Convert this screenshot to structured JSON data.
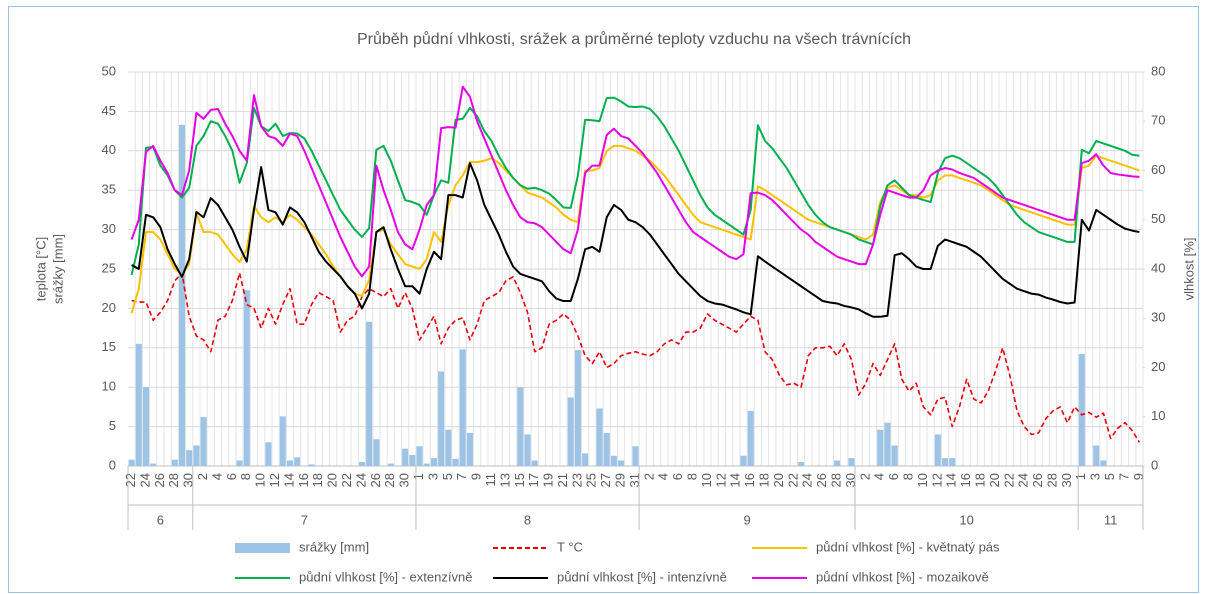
{
  "chart_data": {
    "type": "combo",
    "title": "Průběh půdní vlhkosti, srážek  a průměrné teploty vzduchu na všech trávnících",
    "ylabel": [
      "teplota [°C]",
      "srážky [mm]"
    ],
    "y2label": "vlhkost [%]",
    "ylim": [
      0,
      50
    ],
    "yticks": [
      0,
      5,
      10,
      15,
      20,
      25,
      30,
      35,
      40,
      45,
      50
    ],
    "y2lim": [
      0,
      80
    ],
    "y2ticks": [
      0,
      10,
      20,
      30,
      40,
      50,
      60,
      70,
      80
    ],
    "grid": true,
    "legend": "bottom",
    "x_groups": [
      "6",
      "7",
      "8",
      "9",
      "10",
      "11"
    ],
    "categories": [
      "22",
      null,
      "24",
      null,
      "26",
      null,
      "28",
      null,
      "30",
      null,
      "2",
      null,
      "4",
      null,
      "6",
      null,
      "8",
      null,
      "10",
      null,
      "12",
      null,
      "14",
      null,
      "16",
      null,
      "18",
      null,
      "20",
      null,
      "22",
      null,
      "24",
      null,
      "26",
      null,
      "28",
      null,
      "30",
      null,
      "1",
      null,
      "3",
      null,
      "5",
      null,
      "7",
      null,
      "9",
      null,
      "11",
      null,
      "13",
      null,
      "15",
      null,
      "17",
      null,
      "19",
      null,
      "21",
      null,
      "23",
      null,
      "25",
      null,
      "27",
      null,
      "29",
      null,
      "31",
      null,
      "2",
      null,
      "4",
      null,
      "6",
      null,
      "8",
      null,
      "10",
      null,
      "12",
      null,
      "14",
      null,
      "16",
      null,
      "18",
      null,
      "20",
      null,
      "22",
      null,
      "24",
      null,
      "26",
      null,
      "28",
      null,
      "30",
      null,
      "2",
      null,
      "4",
      null,
      "6",
      null,
      "8",
      null,
      "10",
      null,
      "12",
      null,
      "14",
      null,
      "16",
      null,
      "18",
      null,
      "20",
      null,
      "22",
      null,
      "24",
      null,
      "26",
      null,
      "28",
      null,
      "30",
      null,
      "1",
      null,
      "3",
      null,
      "5",
      null,
      "7",
      null,
      "9"
    ],
    "series": [
      {
        "name": "srážky [mm]",
        "type": "bar",
        "axis": "y",
        "color": "#9dc3e6",
        "values": [
          0.8,
          15.5,
          10,
          0.3,
          0,
          0,
          0.8,
          43.3,
          2,
          2.6,
          6.2,
          0,
          0,
          0,
          0,
          0.7,
          22.3,
          0,
          0,
          3,
          0,
          6.3,
          0.7,
          1.1,
          0,
          0.2,
          0,
          0,
          0,
          0,
          0,
          0,
          0.5,
          18.3,
          3.4,
          0,
          0.3,
          0,
          2.2,
          1.4,
          2.5,
          0.3,
          1,
          12,
          4.6,
          0.9,
          14.8,
          4.2,
          0,
          0,
          0,
          0,
          0,
          0,
          10,
          4,
          0.7,
          0,
          0,
          0,
          0,
          8.7,
          14.7,
          1.6,
          0,
          7.3,
          4.2,
          1.3,
          0.7,
          0,
          2.5,
          0,
          0,
          0,
          0,
          0,
          0,
          0,
          0,
          0,
          0,
          0,
          0,
          0,
          0,
          1.3,
          7,
          0,
          0,
          0,
          0,
          0,
          0,
          0.5,
          0,
          0,
          0,
          0,
          0.7,
          0,
          1,
          0,
          0,
          0,
          4.6,
          5.5,
          2.6,
          0,
          0,
          0,
          0,
          0,
          4,
          1,
          1,
          0,
          0,
          0,
          0,
          0,
          0,
          0,
          0,
          0,
          0,
          0,
          0,
          0,
          0,
          0,
          0,
          0,
          14.2,
          0,
          2.6,
          0.7,
          0,
          0,
          0,
          0,
          0
        ]
      },
      {
        "name": "T  °C",
        "type": "line",
        "axis": "y",
        "color": "#e8000b",
        "dash": true,
        "values": [
          21,
          20.8,
          20.8,
          18.5,
          19.5,
          21,
          23.5,
          24.5,
          19,
          16.5,
          16,
          14.5,
          18.5,
          19,
          21,
          24.5,
          20.5,
          20,
          17.5,
          20,
          18,
          20.5,
          22.5,
          18,
          18,
          20.5,
          22,
          21.5,
          21,
          17,
          18.5,
          19,
          21.5,
          22.5,
          22,
          21.5,
          22.5,
          20,
          22,
          20,
          16,
          17.5,
          19,
          15.5,
          17.5,
          18.5,
          18.8,
          16,
          18,
          21,
          21.5,
          22,
          23.5,
          24,
          22,
          19.5,
          14.5,
          15,
          18,
          18.5,
          19.3,
          18.5,
          16.5,
          14,
          13,
          14.5,
          12.5,
          13,
          14,
          14.3,
          14.5,
          14.2,
          14,
          14.5,
          15.5,
          16,
          15.5,
          17,
          17,
          17.5,
          19.3,
          18.5,
          18,
          17.5,
          17,
          18,
          19,
          18.5,
          14.5,
          13.5,
          11.5,
          10.3,
          10.5,
          10,
          14,
          15,
          15,
          15.2,
          14,
          15.5,
          13.5,
          9,
          10.5,
          13,
          11.5,
          13.5,
          15.5,
          11,
          9.5,
          10.5,
          7.5,
          6.5,
          8.5,
          8.7,
          5,
          7.5,
          11,
          8.5,
          8,
          9.5,
          12,
          15,
          11.5,
          7,
          5,
          4,
          4.2,
          6,
          7,
          7.5,
          5.5,
          7.5,
          6.5,
          6.8,
          6.2,
          6.7,
          3.5,
          4.8,
          5.5,
          4.5,
          3
        ]
      },
      {
        "name": "půdní vlhkost [%] - květnatý pás",
        "type": "line",
        "axis": "y2",
        "color": "#ffc000",
        "values": [
          31,
          36,
          47.5,
          47.5,
          46,
          43,
          40,
          39,
          41,
          51.4,
          47.5,
          47.5,
          47,
          45,
          43,
          41.4,
          44,
          52.8,
          50.5,
          49.5,
          50.5,
          49.5,
          51,
          50,
          48.5,
          47,
          45,
          43,
          40.5,
          38.5,
          36.5,
          35,
          34.5,
          37.8,
          47.5,
          48,
          45,
          43,
          41,
          40.5,
          40,
          42,
          47.5,
          45.5,
          53,
          57,
          59,
          61.7,
          61.7,
          62,
          62.5,
          61.5,
          60,
          58.5,
          57,
          55.5,
          55,
          54.5,
          53.5,
          52.5,
          51,
          50,
          49.5,
          60,
          60,
          60.5,
          64,
          65,
          65,
          64.5,
          64,
          63,
          62,
          60.5,
          59,
          57,
          55,
          53,
          51,
          49.5,
          49,
          48.5,
          48,
          47.5,
          47,
          46.5,
          46,
          56.8,
          56,
          55,
          54,
          53,
          52,
          51,
          50,
          49.5,
          49,
          48.5,
          48,
          47.5,
          47,
          46.5,
          46,
          47,
          53.6,
          56.5,
          57,
          56,
          55,
          55,
          54.5,
          55,
          58,
          59,
          59,
          58.5,
          58,
          57.5,
          57,
          56,
          55,
          54,
          53,
          52.5,
          52,
          51.5,
          51,
          50.5,
          50,
          49.5,
          49,
          49,
          60.5,
          61,
          63,
          62.5,
          62,
          61.5,
          61,
          60.5,
          60
        ]
      },
      {
        "name": "půdní vlhkost [%] - extenzívně",
        "type": "line",
        "axis": "y2",
        "color": "#00b050",
        "values": [
          38.8,
          45,
          64.6,
          64.8,
          61,
          59,
          56,
          54.5,
          56.5,
          65,
          67,
          70,
          69.5,
          67,
          64,
          57.5,
          61.5,
          72.7,
          69,
          68,
          69.5,
          67,
          67.6,
          67.5,
          66.5,
          64,
          61,
          58,
          55,
          52,
          50,
          48,
          46.5,
          48.3,
          64.2,
          65,
          62,
          58,
          54,
          53.6,
          53,
          51,
          55,
          58,
          57.5,
          70.3,
          70.5,
          72.7,
          71,
          68,
          66,
          63,
          60.5,
          58.5,
          57,
          56.3,
          56.5,
          56,
          55.3,
          54,
          52.5,
          52.4,
          59,
          70.3,
          70.2,
          70,
          74.7,
          74.8,
          74,
          73,
          72.9,
          73,
          72.5,
          71,
          69,
          66.5,
          64,
          61,
          58,
          55,
          52.5,
          51,
          50,
          49,
          48,
          47,
          52,
          69.2,
          66,
          64.5,
          62.5,
          60.5,
          58,
          55.5,
          53,
          51,
          49.5,
          48.5,
          48,
          47.5,
          47,
          46,
          45.5,
          45,
          52.8,
          57,
          58,
          56.5,
          55,
          54.5,
          54,
          53.6,
          59.5,
          62.5,
          63,
          62.5,
          61.5,
          60.5,
          59.5,
          58.5,
          57,
          55,
          53,
          51,
          49.5,
          48.5,
          47.5,
          47,
          46.5,
          46,
          45.5,
          45.5,
          64.2,
          63.5,
          66,
          65.5,
          65,
          64.5,
          64,
          63.2,
          63
        ]
      },
      {
        "name": "půdní vlhkost [%] - intenzívně",
        "type": "line",
        "axis": "y2",
        "color": "#000000",
        "values": [
          40.8,
          40,
          51,
          50.5,
          48.5,
          44,
          41,
          38.4,
          42,
          51.6,
          50.5,
          54.4,
          53,
          50.5,
          48,
          44.5,
          41.5,
          52,
          60.7,
          52,
          51.5,
          49,
          52.5,
          51.5,
          49.5,
          46.5,
          43.5,
          41.5,
          40,
          38.5,
          36.5,
          35,
          32,
          35,
          47.5,
          48.5,
          44,
          40,
          36.5,
          36.5,
          35,
          40,
          43.5,
          42,
          55,
          55,
          54.5,
          61.5,
          58,
          53,
          50,
          47,
          43.5,
          40.5,
          39,
          38.5,
          38,
          37.5,
          35.5,
          34,
          33.5,
          33.5,
          38,
          44,
          44.5,
          43.5,
          50.5,
          53,
          52,
          50,
          49.5,
          48.5,
          47,
          45,
          43,
          41,
          39,
          37.5,
          36,
          34.5,
          33.5,
          33,
          32.8,
          32.3,
          31.8,
          31.2,
          30.8,
          42.6,
          41.5,
          40.5,
          39.5,
          38.5,
          37.5,
          36.5,
          35.5,
          34.5,
          33.5,
          33.2,
          33,
          32.5,
          32.2,
          31.8,
          31,
          30.3,
          30.3,
          30.5,
          42.8,
          43.2,
          42,
          40.5,
          40,
          40,
          44.7,
          46,
          45.5,
          45,
          44.5,
          43.5,
          42.5,
          41,
          39.5,
          38,
          37,
          36,
          35.5,
          35,
          34.8,
          34.2,
          33.8,
          33.3,
          33,
          33.2,
          50,
          47.8,
          52,
          51,
          50,
          49,
          48.2,
          47.8,
          47.5
        ]
      },
      {
        "name": "půdní vlhkost [%] - mozaikově",
        "type": "line",
        "axis": "y2",
        "color": "#e600e6",
        "values": [
          46,
          50,
          63.8,
          65,
          62,
          59.5,
          56,
          55,
          60,
          71.7,
          70.5,
          72.3,
          72.5,
          69.5,
          67,
          64,
          62,
          75.3,
          69,
          67,
          66.5,
          65,
          67.5,
          67,
          64,
          60.5,
          57,
          53.5,
          50,
          46.5,
          43.5,
          40.5,
          38.5,
          40.5,
          61,
          56,
          52,
          47.5,
          45,
          44,
          48,
          53,
          55,
          68.6,
          68.8,
          68.7,
          77,
          75,
          70,
          66.5,
          63,
          59.5,
          56,
          53,
          50.5,
          49.5,
          49.3,
          48.5,
          47,
          45.5,
          44,
          43.2,
          48,
          59.5,
          61,
          61,
          67.2,
          68.5,
          67,
          66.5,
          65,
          63.5,
          61.5,
          59.5,
          57,
          54.5,
          52,
          49.5,
          47.5,
          46.5,
          45.5,
          44.5,
          43.5,
          42.5,
          42,
          43,
          55.4,
          55.5,
          55,
          54,
          52.5,
          51,
          49.5,
          48,
          47,
          45.5,
          44.5,
          43.5,
          42.5,
          42,
          41.5,
          41,
          41,
          45,
          51,
          56,
          55.5,
          55,
          54.5,
          54.5,
          56,
          59,
          60,
          60.5,
          60.2,
          59.5,
          59,
          58.5,
          57.5,
          56.5,
          55.5,
          54.5,
          54,
          53.5,
          53,
          52.5,
          52,
          51.5,
          51,
          50.5,
          50,
          50,
          61.5,
          62,
          63.3,
          61,
          59.5,
          59.2,
          59,
          58.8,
          58.7
        ]
      }
    ]
  }
}
